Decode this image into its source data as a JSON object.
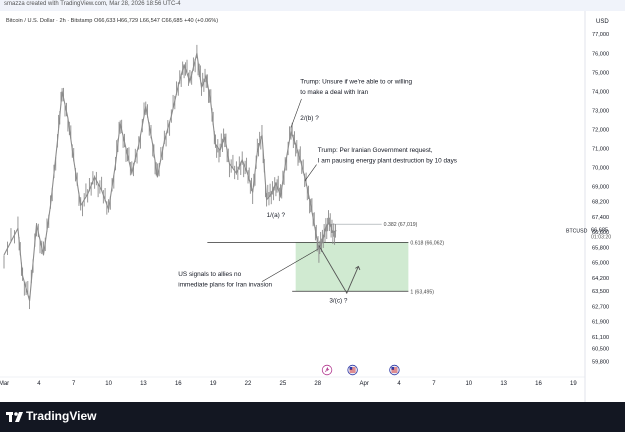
{
  "header": {
    "credit": "smazza created with TradingView.com, Mar 28, 2026 18:56 UTC-4",
    "legend": "Bitcoin / U.S. Dollar · 2h · Bitstamp  O66,633  H66,729  L66,547  C66,685  +40 (+0.06%)"
  },
  "footer": {
    "brand": "TradingView"
  },
  "colors": {
    "candle": "#8c8c8c",
    "zone": "#c8e6c9",
    "label_bg": "#131722",
    "axis_text": "#131722",
    "grid": "#e0e3eb"
  },
  "chart_data": {
    "type": "line",
    "series_note": "BTCUSD 2h price (grey candles)",
    "currency": "USD",
    "ylim": [
      59200,
      77800
    ],
    "y_ticks": [
      "77,000",
      "76,000",
      "75,000",
      "74,000",
      "73,000",
      "72,000",
      "71,000",
      "70,000",
      "69,000",
      "68,200",
      "67,400",
      "66,600",
      "65,800",
      "65,000",
      "64,200",
      "63,500",
      "62,700",
      "61,900",
      "61,100",
      "60,500",
      "59,800"
    ],
    "x_ticks": [
      "Mar",
      "4",
      "7",
      "10",
      "13",
      "16",
      "19",
      "22",
      "25",
      "28",
      "Apr",
      "4",
      "7",
      "10",
      "13",
      "16",
      "19"
    ],
    "price_points": [
      [
        0,
        65400
      ],
      [
        1.2,
        66800
      ],
      [
        1.6,
        64300
      ],
      [
        2.2,
        63000
      ],
      [
        2.8,
        67000
      ],
      [
        3.4,
        65400
      ],
      [
        4,
        68000
      ],
      [
        4.6,
        71400
      ],
      [
        5,
        74000
      ],
      [
        5.5,
        72600
      ],
      [
        6,
        70400
      ],
      [
        6.6,
        68000
      ],
      [
        7.2,
        68600
      ],
      [
        7.8,
        69500
      ],
      [
        8.4,
        68800
      ],
      [
        9,
        67800
      ],
      [
        9.6,
        70200
      ],
      [
        10,
        72300
      ],
      [
        10.5,
        71000
      ],
      [
        11,
        69700
      ],
      [
        11.6,
        71200
      ],
      [
        12.2,
        73200
      ],
      [
        12.8,
        71200
      ],
      [
        13.2,
        69500
      ],
      [
        13.8,
        71400
      ],
      [
        14.4,
        72700
      ],
      [
        15,
        74300
      ],
      [
        15.5,
        75400
      ],
      [
        16,
        74500
      ],
      [
        16.6,
        76000
      ],
      [
        17,
        74200
      ],
      [
        17.4,
        74800
      ],
      [
        17.8,
        73400
      ],
      [
        18.2,
        71200
      ],
      [
        18.6,
        70900
      ],
      [
        19,
        71600
      ],
      [
        19.4,
        70200
      ],
      [
        20,
        69700
      ],
      [
        20.5,
        70400
      ],
      [
        21,
        69600
      ],
      [
        21.4,
        68700
      ],
      [
        21.8,
        70800
      ],
      [
        22.2,
        71700
      ],
      [
        22.6,
        68300
      ],
      [
        23,
        68600
      ],
      [
        23.4,
        69200
      ],
      [
        23.8,
        68500
      ],
      [
        24.2,
        70100
      ],
      [
        24.7,
        71900
      ],
      [
        25.1,
        71200
      ],
      [
        25.5,
        70400
      ],
      [
        26,
        69200
      ],
      [
        26.4,
        68000
      ],
      [
        26.8,
        66700
      ],
      [
        27.1,
        65700
      ],
      [
        27.4,
        66100
      ],
      [
        27.7,
        66900
      ],
      [
        28,
        67100
      ],
      [
        28.3,
        66600
      ],
      [
        28.6,
        66685
      ]
    ],
    "annotations": [
      {
        "text": "Trump: Unsure if we're able to or willing",
        "x": 25.5,
        "y": 74400
      },
      {
        "text": "to make a deal with Iran",
        "x": 25.5,
        "y": 73850
      },
      {
        "text": "2/(b) ?",
        "x": 25.5,
        "y": 72500
      },
      {
        "text": "Trump: Per Iranian Government request,",
        "x": 27.0,
        "y": 70800
      },
      {
        "text": "I am pausing energy plant destruction by 10 days",
        "x": 27.0,
        "y": 70250
      },
      {
        "text": "1/(a) ?",
        "x": 22.6,
        "y": 67400
      },
      {
        "text": "US signals to allies no",
        "x": 15.0,
        "y": 64300
      },
      {
        "text": "immediate plans for Iran invasion",
        "x": 15.0,
        "y": 63750
      },
      {
        "text": "3/(c) ?",
        "x": 28.0,
        "y": 62900
      }
    ],
    "levels": [
      {
        "label": "0.382 (67,019)",
        "value": 67019
      },
      {
        "label": "0.618 (66,062)",
        "value": 66062
      },
      {
        "label": "1 (63,495)",
        "value": 63495
      }
    ],
    "projection": [
      [
        27.1,
        65900
      ],
      [
        29.5,
        63400
      ],
      [
        30.5,
        64800
      ]
    ],
    "zone": {
      "x0": 25.1,
      "x1": 34.8,
      "y0": 63495,
      "y1": 66062
    },
    "current_price": {
      "symbol": "BTCUSD",
      "price": "66,685",
      "countdown": "01:03:20"
    },
    "bottom_markers": [
      {
        "x": 27.8,
        "type": "news"
      },
      {
        "x": 30.0,
        "type": "us-flag"
      },
      {
        "x": 33.6,
        "type": "us-flag"
      }
    ]
  }
}
